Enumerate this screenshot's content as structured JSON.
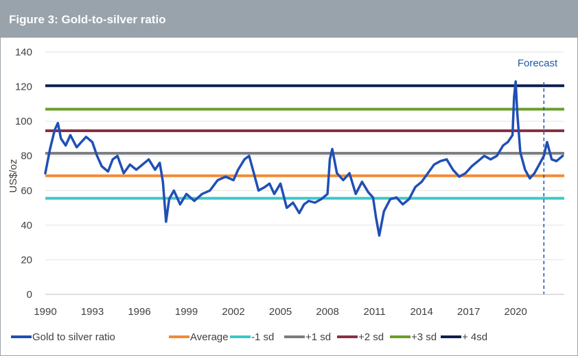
{
  "header": {
    "title": "Figure 3: Gold-to-silver ratio"
  },
  "colors": {
    "ratio": "#1f4fb5",
    "average": "#f28c33",
    "minus1sd": "#3cc7c9",
    "plus1sd": "#7a7d80",
    "plus2sd": "#8a2f45",
    "plus3sd": "#6b9e2a",
    "plus4sd": "#0d1f4d",
    "forecast": "#1f4fb5",
    "axis_text": "#404040",
    "forecast_text": "#1f5aa5"
  },
  "chart_data": {
    "type": "line",
    "title": "",
    "xlabel": "",
    "ylabel": "US$/oz",
    "xlim": [
      1990,
      2023.1
    ],
    "ylim": [
      0,
      140
    ],
    "x_ticks": [
      1990,
      1993,
      1996,
      1999,
      2002,
      2005,
      2008,
      2011,
      2014,
      2017,
      2020
    ],
    "y_ticks": [
      0,
      20,
      40,
      60,
      80,
      100,
      120,
      140
    ],
    "grid": "horizontal",
    "legend_position": "bottom",
    "forecast": {
      "label": "Forecast",
      "start_x": 2021.8
    },
    "reference_lines": [
      {
        "name": "Average",
        "value": 68.5,
        "color_key": "average"
      },
      {
        "name": "-1 sd",
        "value": 55.5,
        "color_key": "minus1sd"
      },
      {
        "name": "+1 sd",
        "value": 81.5,
        "color_key": "plus1sd"
      },
      {
        "name": "+2 sd",
        "value": 94.5,
        "color_key": "plus2sd"
      },
      {
        "name": "+3 sd",
        "value": 107,
        "color_key": "plus3sd"
      },
      {
        "name": "+ 4sd",
        "value": 120.5,
        "color_key": "plus4sd"
      }
    ],
    "series": [
      {
        "name": "Gold to silver ratio",
        "color_key": "ratio",
        "x": [
          1990,
          1990.3,
          1990.6,
          1990.8,
          1991,
          1991.3,
          1991.6,
          1992,
          1992.3,
          1992.6,
          1993,
          1993.3,
          1993.6,
          1994,
          1994.3,
          1994.6,
          1995,
          1995.4,
          1995.8,
          1996.2,
          1996.6,
          1997,
          1997.3,
          1997.5,
          1997.7,
          1997.9,
          1998.2,
          1998.6,
          1999,
          1999.5,
          2000,
          2000.5,
          2001,
          2001.5,
          2002,
          2002.3,
          2002.7,
          2003,
          2003.3,
          2003.6,
          2004,
          2004.3,
          2004.6,
          2005,
          2005.4,
          2005.8,
          2006.2,
          2006.5,
          2006.8,
          2007.2,
          2007.6,
          2008,
          2008.15,
          2008.3,
          2008.6,
          2009,
          2009.4,
          2009.8,
          2010.2,
          2010.6,
          2010.9,
          2011.1,
          2011.3,
          2011.6,
          2012,
          2012.4,
          2012.8,
          2013.2,
          2013.6,
          2014,
          2014.4,
          2014.8,
          2015.2,
          2015.6,
          2016,
          2016.4,
          2016.8,
          2017.2,
          2017.6,
          2018,
          2018.4,
          2018.8,
          2019.2,
          2019.5,
          2019.8,
          2019.9,
          2020,
          2020.1,
          2020.3,
          2020.6,
          2020.9,
          2021.2,
          2021.5,
          2021.8,
          2022,
          2022.3,
          2022.6,
          2023
        ],
        "values": [
          70,
          84,
          95,
          99,
          90,
          86,
          92,
          85,
          88,
          91,
          88,
          80,
          74,
          71,
          78,
          80,
          70,
          75,
          72,
          75,
          78,
          72,
          76,
          65,
          42,
          55,
          60,
          52,
          58,
          54,
          58,
          60,
          66,
          68,
          66,
          72,
          78,
          80,
          70,
          60,
          62,
          64,
          58,
          64,
          50,
          53,
          47,
          52,
          54,
          53,
          55,
          58,
          78,
          84,
          70,
          66,
          70,
          58,
          65,
          59,
          56,
          44,
          34,
          48,
          55,
          56,
          52,
          55,
          62,
          65,
          70,
          75,
          77,
          78,
          72,
          68,
          70,
          74,
          77,
          80,
          78,
          80,
          86,
          88,
          92,
          114,
          123,
          105,
          82,
          72,
          67,
          70,
          75,
          80,
          88,
          78,
          77,
          80
        ]
      }
    ]
  },
  "legend": [
    {
      "label": "Gold to silver ratio",
      "color_key": "ratio"
    },
    {
      "label": "Average",
      "color_key": "average"
    },
    {
      "label": "-1 sd",
      "color_key": "minus1sd"
    },
    {
      "label": "+1 sd",
      "color_key": "plus1sd"
    },
    {
      "label": "+2 sd",
      "color_key": "plus2sd"
    },
    {
      "label": "+3 sd",
      "color_key": "plus3sd"
    },
    {
      "label": "+ 4sd",
      "color_key": "plus4sd"
    }
  ]
}
